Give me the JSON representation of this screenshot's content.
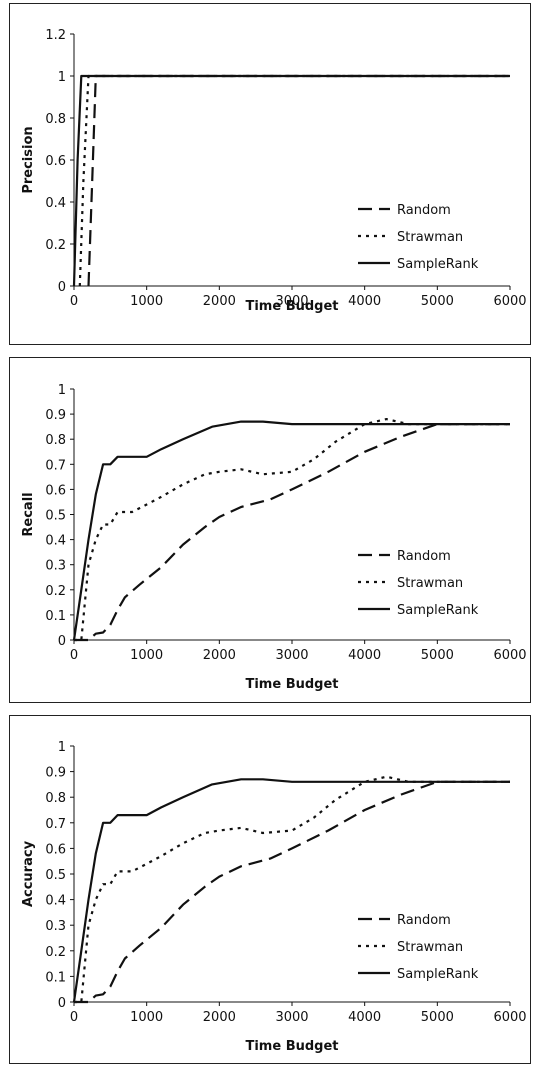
{
  "chart_data": [
    {
      "type": "line",
      "xlabel": "Time Budget",
      "ylabel": "Precision",
      "xlim": [
        0,
        6000
      ],
      "ylim": [
        0,
        1.2
      ],
      "xticks": [
        "0",
        "1000",
        "2000",
        "3000",
        "4000",
        "5000",
        "6000"
      ],
      "yticks": [
        "0",
        "0.2",
        "0.4",
        "0.6",
        "0.8",
        "1",
        "1.2"
      ],
      "grid": false,
      "legend": "bottom-right",
      "series": [
        {
          "name": "Random",
          "style": "dashed",
          "color": "#111111",
          "points": [
            [
              200,
              0
            ],
            [
              250,
              0.5
            ],
            [
              300,
              1
            ],
            [
              6000,
              1
            ]
          ]
        },
        {
          "name": "Strawman",
          "style": "dotted",
          "color": "#111111",
          "points": [
            [
              80,
              0
            ],
            [
              130,
              0.5
            ],
            [
              200,
              1
            ],
            [
              6000,
              1
            ]
          ]
        },
        {
          "name": "SampleRank",
          "style": "solid",
          "color": "#111111",
          "points": [
            [
              0,
              0
            ],
            [
              50,
              0.6
            ],
            [
              100,
              1
            ],
            [
              6000,
              1
            ]
          ]
        }
      ]
    },
    {
      "type": "line",
      "xlabel": "Time Budget",
      "ylabel": "Recall",
      "xlim": [
        0,
        6000
      ],
      "ylim": [
        0,
        1
      ],
      "xticks": [
        "0",
        "1000",
        "2000",
        "3000",
        "4000",
        "5000",
        "6000"
      ],
      "yticks": [
        "0",
        "0.1",
        "0.2",
        "0.3",
        "0.4",
        "0.5",
        "0.6",
        "0.7",
        "0.8",
        "0.9",
        "1"
      ],
      "grid": false,
      "legend": "bottom-right",
      "series": [
        {
          "name": "Random",
          "style": "dashed",
          "color": "#111111",
          "points": [
            [
              0,
              0
            ],
            [
              200,
              0
            ],
            [
              300,
              0.025
            ],
            [
              400,
              0.03
            ],
            [
              500,
              0.06
            ],
            [
              600,
              0.12
            ],
            [
              700,
              0.17
            ],
            [
              900,
              0.22
            ],
            [
              1200,
              0.29
            ],
            [
              1500,
              0.38
            ],
            [
              1800,
              0.45
            ],
            [
              2000,
              0.49
            ],
            [
              2300,
              0.53
            ],
            [
              2700,
              0.56
            ],
            [
              3000,
              0.6
            ],
            [
              3500,
              0.67
            ],
            [
              4000,
              0.75
            ],
            [
              4500,
              0.81
            ],
            [
              5000,
              0.86
            ],
            [
              5500,
              0.86
            ],
            [
              6000,
              0.86
            ]
          ]
        },
        {
          "name": "Strawman",
          "style": "dotted",
          "color": "#111111",
          "points": [
            [
              0,
              0
            ],
            [
              100,
              0
            ],
            [
              200,
              0.3
            ],
            [
              300,
              0.4
            ],
            [
              400,
              0.46
            ],
            [
              500,
              0.46
            ],
            [
              600,
              0.51
            ],
            [
              800,
              0.51
            ],
            [
              1000,
              0.54
            ],
            [
              1200,
              0.57
            ],
            [
              1500,
              0.62
            ],
            [
              1800,
              0.66
            ],
            [
              2000,
              0.67
            ],
            [
              2300,
              0.68
            ],
            [
              2600,
              0.66
            ],
            [
              3000,
              0.67
            ],
            [
              3300,
              0.72
            ],
            [
              3600,
              0.79
            ],
            [
              4000,
              0.86
            ],
            [
              4300,
              0.88
            ],
            [
              4600,
              0.86
            ],
            [
              5000,
              0.86
            ],
            [
              6000,
              0.86
            ]
          ]
        },
        {
          "name": "SampleRank",
          "style": "solid",
          "color": "#111111",
          "points": [
            [
              0,
              0
            ],
            [
              100,
              0.2
            ],
            [
              200,
              0.4
            ],
            [
              300,
              0.58
            ],
            [
              400,
              0.7
            ],
            [
              500,
              0.7
            ],
            [
              600,
              0.73
            ],
            [
              1000,
              0.73
            ],
            [
              1200,
              0.76
            ],
            [
              1500,
              0.8
            ],
            [
              1900,
              0.85
            ],
            [
              2300,
              0.87
            ],
            [
              2600,
              0.87
            ],
            [
              3000,
              0.86
            ],
            [
              4000,
              0.86
            ],
            [
              5000,
              0.86
            ],
            [
              6000,
              0.86
            ]
          ]
        }
      ]
    },
    {
      "type": "line",
      "xlabel": "Time Budget",
      "ylabel": "Accuracy",
      "xlim": [
        0,
        6000
      ],
      "ylim": [
        0,
        1
      ],
      "xticks": [
        "0",
        "1000",
        "2000",
        "3000",
        "4000",
        "5000",
        "6000"
      ],
      "yticks": [
        "0",
        "0.1",
        "0.2",
        "0.3",
        "0.4",
        "0.5",
        "0.6",
        "0.7",
        "0.8",
        "0.9",
        "1"
      ],
      "grid": false,
      "legend": "bottom-right",
      "series": [
        {
          "name": "Random",
          "style": "dashed",
          "color": "#111111",
          "points": [
            [
              0,
              0
            ],
            [
              200,
              0
            ],
            [
              300,
              0.025
            ],
            [
              400,
              0.03
            ],
            [
              500,
              0.06
            ],
            [
              600,
              0.12
            ],
            [
              700,
              0.17
            ],
            [
              900,
              0.22
            ],
            [
              1200,
              0.29
            ],
            [
              1500,
              0.38
            ],
            [
              1800,
              0.45
            ],
            [
              2000,
              0.49
            ],
            [
              2300,
              0.53
            ],
            [
              2700,
              0.56
            ],
            [
              3000,
              0.6
            ],
            [
              3500,
              0.67
            ],
            [
              4000,
              0.75
            ],
            [
              4500,
              0.81
            ],
            [
              5000,
              0.86
            ],
            [
              5500,
              0.86
            ],
            [
              6000,
              0.86
            ]
          ]
        },
        {
          "name": "Strawman",
          "style": "dotted",
          "color": "#111111",
          "points": [
            [
              0,
              0
            ],
            [
              100,
              0
            ],
            [
              200,
              0.3
            ],
            [
              300,
              0.4
            ],
            [
              400,
              0.46
            ],
            [
              500,
              0.46
            ],
            [
              600,
              0.51
            ],
            [
              800,
              0.51
            ],
            [
              1000,
              0.54
            ],
            [
              1200,
              0.57
            ],
            [
              1500,
              0.62
            ],
            [
              1800,
              0.66
            ],
            [
              2000,
              0.67
            ],
            [
              2300,
              0.68
            ],
            [
              2600,
              0.66
            ],
            [
              3000,
              0.67
            ],
            [
              3300,
              0.72
            ],
            [
              3600,
              0.79
            ],
            [
              4000,
              0.86
            ],
            [
              4300,
              0.88
            ],
            [
              4600,
              0.86
            ],
            [
              5000,
              0.86
            ],
            [
              6000,
              0.86
            ]
          ]
        },
        {
          "name": "SampleRank",
          "style": "solid",
          "color": "#111111",
          "points": [
            [
              0,
              0
            ],
            [
              100,
              0.2
            ],
            [
              200,
              0.4
            ],
            [
              300,
              0.58
            ],
            [
              400,
              0.7
            ],
            [
              500,
              0.7
            ],
            [
              600,
              0.73
            ],
            [
              1000,
              0.73
            ],
            [
              1200,
              0.76
            ],
            [
              1500,
              0.8
            ],
            [
              1900,
              0.85
            ],
            [
              2300,
              0.87
            ],
            [
              2600,
              0.87
            ],
            [
              3000,
              0.86
            ],
            [
              4000,
              0.86
            ],
            [
              5000,
              0.86
            ],
            [
              6000,
              0.86
            ]
          ]
        }
      ]
    }
  ]
}
